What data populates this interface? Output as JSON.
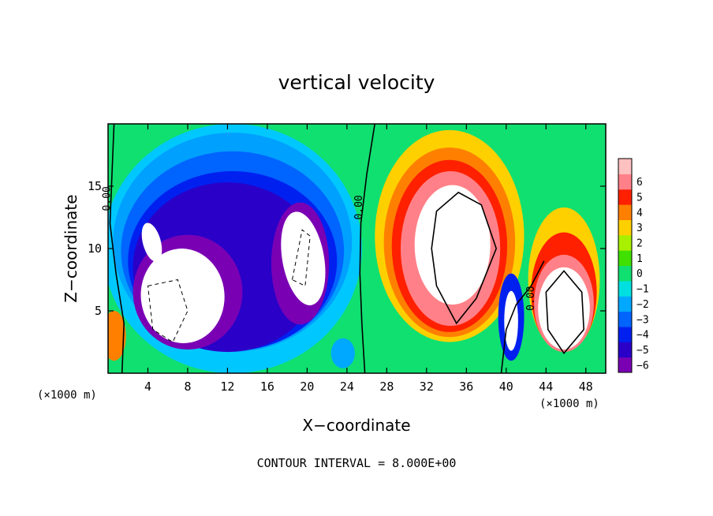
{
  "chart_data": {
    "type": "heatmap",
    "title": "vertical velocity",
    "xlabel": "X−coordinate",
    "ylabel": "Z−coordinate",
    "x_unit_left": "(×1000 m)",
    "x_unit_right": "(×1000 m)",
    "footer": "CONTOUR INTERVAL = 8.000E+00",
    "xlim": [
      0,
      50
    ],
    "ylim": [
      0,
      20
    ],
    "x_ticks": [
      4,
      8,
      12,
      16,
      20,
      24,
      28,
      32,
      36,
      40,
      44,
      48
    ],
    "y_ticks": [
      5,
      10,
      15
    ],
    "x_tick_labels": [
      "4",
      "8",
      "12",
      "16",
      "20",
      "24",
      "28",
      "32",
      "36",
      "40",
      "44",
      "48"
    ],
    "y_tick_labels": [
      "5",
      "10",
      "15"
    ],
    "colorbar": {
      "levels": [
        -6,
        -5,
        -4,
        -3,
        -2,
        -1,
        0,
        1,
        2,
        3,
        4,
        5,
        6
      ],
      "labels": [
        "−6",
        "−5",
        "−4",
        "−3",
        "−2",
        "−1",
        "0",
        "1",
        "2",
        "3",
        "4",
        "5",
        "6"
      ],
      "colors": [
        "#7a00b4",
        "#2a00c8",
        "#0020f0",
        "#0064ff",
        "#00a8ff",
        "#00e0e0",
        "#10e070",
        "#40e000",
        "#a8f000",
        "#ffd000",
        "#ff8000",
        "#ff2000",
        "#ff8088",
        "#ffc0c0"
      ]
    },
    "contour_labels": [
      {
        "text": "0.00",
        "x": 0.2,
        "y": 14.0
      },
      {
        "text": "0.00",
        "x": 25.5,
        "y": 13.3
      },
      {
        "text": "0.00",
        "x": 42.8,
        "y": 6.0
      }
    ],
    "features": [
      {
        "kind": "downdraft",
        "x": 7.5,
        "y": 6.5,
        "peak": -6
      },
      {
        "kind": "downdraft",
        "x": 19.5,
        "y": 8.5,
        "peak": -6
      },
      {
        "kind": "updraft",
        "x": 34.5,
        "y": 9.5,
        "peak": 6
      },
      {
        "kind": "updraft",
        "x": 46.0,
        "y": 5.2,
        "peak": 6
      }
    ]
  }
}
